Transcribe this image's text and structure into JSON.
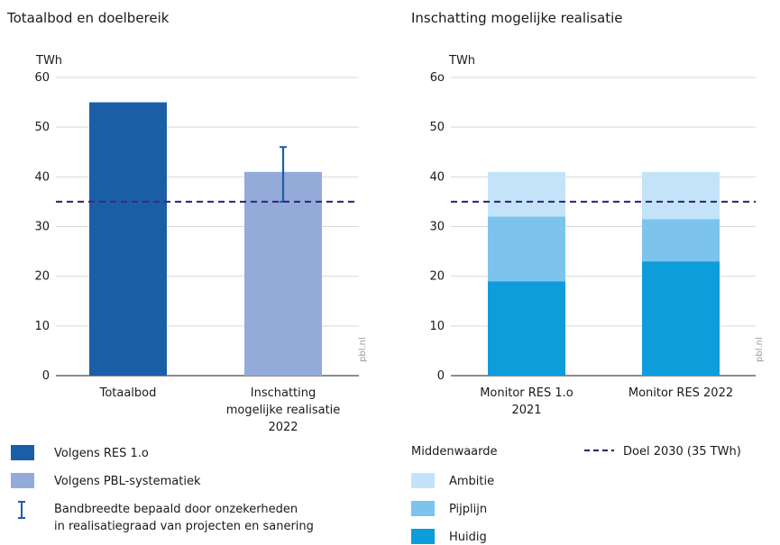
{
  "chart_data": [
    {
      "type": "bar",
      "title": "Totaalbod en doelbereik",
      "ylabel": "TWh",
      "ylim": [
        0,
        60
      ],
      "yticks": [
        0,
        10,
        20,
        30,
        40,
        50,
        60
      ],
      "ytick_labels": [
        "0",
        "10",
        "20",
        "30",
        "40",
        "50",
        "60"
      ],
      "grid": true,
      "categories": [
        {
          "lines": [
            "Totaalbod"
          ]
        },
        {
          "lines": [
            "Inschatting",
            "mogelijke realisatie",
            "2022"
          ]
        }
      ],
      "bars": [
        {
          "category": "Totaalbod",
          "value": 55,
          "series": "Volgens RES 1.0",
          "color": "#1a5ea8"
        },
        {
          "category": "Inschatting mogelijke realisatie 2022",
          "value": 41,
          "series": "Volgens PBL-systematiek",
          "color": "#94abda",
          "error_range": [
            35,
            46
          ],
          "error_color": "#1a5ea8"
        }
      ],
      "target_line": {
        "value": 35,
        "label": "Doel 2030 (35 TWh)",
        "color": "#3b2a7a"
      },
      "credit": "pbl.nl"
    },
    {
      "type": "bar",
      "stacked": true,
      "title": "Inschatting mogelijke realisatie",
      "ylabel": "TWh",
      "ylim": [
        0,
        60
      ],
      "yticks": [
        0,
        10,
        20,
        30,
        40,
        50,
        60
      ],
      "ytick_labels": [
        "0",
        "10",
        "20",
        "30",
        "40",
        "50",
        "6o"
      ],
      "grid": true,
      "categories": [
        {
          "lines": [
            "Monitor RES 1.o",
            "2021"
          ]
        },
        {
          "lines": [
            "Monitor RES 2022"
          ]
        }
      ],
      "series": [
        {
          "name": "Huidig",
          "color": "#0d9ddb",
          "values": [
            19,
            23
          ]
        },
        {
          "name": "Pijplijn",
          "color": "#7cc4ee",
          "values": [
            13,
            8.5
          ]
        },
        {
          "name": "Ambitie",
          "color": "#c3e3f8",
          "values": [
            9,
            9.5
          ]
        }
      ],
      "target_line": {
        "value": 35,
        "label": "Doel 2030 (35 TWh)",
        "color": "#3b2a7a"
      },
      "credit": "pbl.nl"
    }
  ],
  "legend": {
    "left": [
      {
        "type": "swatch",
        "color": "#1a5ea8",
        "lines": [
          "Volgens RES 1.o"
        ]
      },
      {
        "type": "swatch",
        "color": "#94abda",
        "lines": [
          "Volgens PBL-systematiek"
        ]
      },
      {
        "type": "errorbar",
        "color": "#1a5ea8",
        "lines": [
          "Bandbreedte bepaald door onzekerheden",
          "in realisatiegraad van projecten en sanering"
        ]
      }
    ],
    "middle_title": "Middenwaarde",
    "middle": [
      {
        "type": "swatch",
        "color": "#c3e3f8",
        "lines": [
          "Ambitie"
        ]
      },
      {
        "type": "swatch",
        "color": "#7cc4ee",
        "lines": [
          "Pijplijn"
        ]
      },
      {
        "type": "swatch",
        "color": "#0d9ddb",
        "lines": [
          "Huidig"
        ]
      }
    ],
    "right": [
      {
        "type": "dash",
        "color": "#3b2a7a",
        "lines": [
          "Doel 2030 (35 TWh)"
        ]
      }
    ]
  }
}
